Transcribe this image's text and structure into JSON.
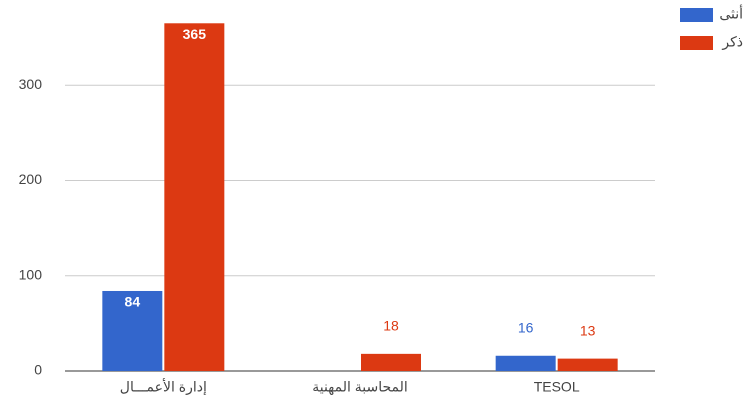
{
  "chart_data": {
    "type": "bar",
    "categories": [
      "إدارة الأعمـــال",
      "المحاسبة المهنية",
      "TESOL"
    ],
    "series": [
      {
        "name": "أنثى",
        "color": "#3366cc",
        "values": [
          84,
          null,
          16
        ]
      },
      {
        "name": "ذكر",
        "color": "#dc3912",
        "values": [
          365,
          18,
          13
        ]
      }
    ],
    "ylim": [
      0,
      380
    ],
    "yticks": [
      0,
      100,
      200,
      300
    ],
    "grid": true,
    "legend": "top-right"
  }
}
